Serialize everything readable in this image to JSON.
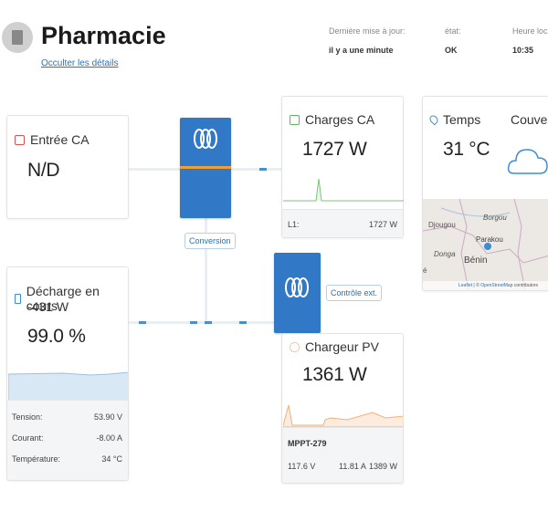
{
  "header": {
    "title": "Pharmacie",
    "hide_link": "Occulter les détails",
    "last_update_label": "Dernière mise à jour:",
    "last_update_value": "il y a une minute",
    "state_label": "état:",
    "state_value": "OK",
    "time_label": "Heure locale",
    "time_value": "10:35"
  },
  "ac_input": {
    "title": "Entrée CA",
    "value": "N/D"
  },
  "conversion": {
    "label": "Conversion"
  },
  "ac_loads": {
    "title": "Charges CA",
    "value": "1727 W",
    "line_label": "L1:",
    "line_value": "1727 W"
  },
  "weather": {
    "title": "Temps",
    "condition": "Couvert",
    "temperature": "31 °C",
    "map": {
      "places": [
        "Djougou",
        "Borgou",
        "Parakou",
        "Donga",
        "Bénin"
      ],
      "edge_letter": "é",
      "attribution_leaflet": "Leaflet",
      "attribution_sep": "| ©",
      "attribution_osm": "OpenStreetMap",
      "attribution_contrib": "contributors"
    }
  },
  "battery": {
    "title": "Décharge en cours",
    "power": "-431 W",
    "soc": "99.0 %",
    "rows": [
      {
        "label": "Tension:",
        "value": "53.90 V"
      },
      {
        "label": "Courant:",
        "value": "-8.00 A"
      },
      {
        "label": "Température:",
        "value": "34 °C"
      }
    ]
  },
  "external_control": {
    "label": "Contrôle ext."
  },
  "pv_charger": {
    "title": "Chargeur PV",
    "value": "1361 W",
    "device": "MPPT-279",
    "voltage": "117.6 V",
    "current": "11.81 A",
    "power": "1389 W"
  },
  "colors": {
    "accent": "#3178c6",
    "link": "#2a72b5",
    "ac_input_icon": "#d9534f",
    "ac_loads_icon": "#5cb85c",
    "pv_icon": "#f0883e",
    "battery_icon": "#3b8dd6"
  }
}
